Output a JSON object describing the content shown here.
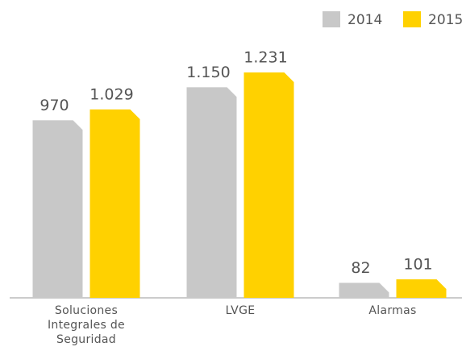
{
  "chart_data": {
    "type": "bar",
    "categories": [
      "Soluciones Integrales de Seguridad",
      "LVGE",
      "Alarmas"
    ],
    "series": [
      {
        "name": "2014",
        "color": "#c8c8c8",
        "values": [
          970,
          1150,
          82
        ],
        "value_labels": [
          "970",
          "1.150",
          "82"
        ]
      },
      {
        "name": "2015",
        "color": "#ffd100",
        "values": [
          1029,
          1231,
          101
        ],
        "value_labels": [
          "1.029",
          "1.231",
          "101"
        ]
      }
    ],
    "legend": "top-right"
  }
}
